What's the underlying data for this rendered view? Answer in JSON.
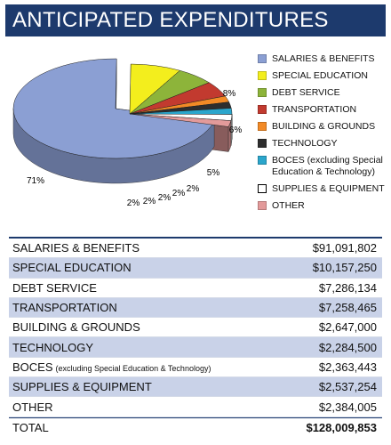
{
  "header": {
    "title": "ANTICIPATED EXPENDITURES"
  },
  "chart_data": {
    "type": "pie",
    "categories": [
      "SALARIES & BENEFITS",
      "SPECIAL EDUCATION",
      "DEBT SERVICE",
      "TRANSPORTATION",
      "BUILDING & GROUNDS",
      "TECHNOLOGY",
      "BOCES (excluding Special Education & Technology)",
      "SUPPLIES & EQUIPMENT",
      "OTHER"
    ],
    "values": [
      71,
      8,
      6,
      5,
      2,
      2,
      2,
      2,
      2
    ],
    "colors": [
      "#8b9fd3",
      "#f3ee1d",
      "#8db43a",
      "#c23a2f",
      "#f28a26",
      "#2e2e2e",
      "#2ba6cc",
      "#ffffff",
      "#e39a9a"
    ]
  },
  "table": {
    "rows": [
      {
        "label": "SALARIES & BENEFITS",
        "amount": "$91,091,802"
      },
      {
        "label": "SPECIAL EDUCATION",
        "amount": "$10,157,250"
      },
      {
        "label": "DEBT SERVICE",
        "amount": "$7,286,134"
      },
      {
        "label": "TRANSPORTATION",
        "amount": "$7,258,465"
      },
      {
        "label": "BUILDING & GROUNDS",
        "amount": "$2,647,000"
      },
      {
        "label": "TECHNOLOGY",
        "amount": "$2,284,500"
      },
      {
        "label": "BOCES",
        "note": "(excluding Special Education & Technology)",
        "amount": "$2,363,443"
      },
      {
        "label": "SUPPLIES & EQUIPMENT",
        "amount": "$2,537,254"
      },
      {
        "label": "OTHER",
        "amount": "$2,384,005"
      }
    ],
    "total": {
      "label": "TOTAL",
      "amount": "$128,009,853"
    }
  }
}
